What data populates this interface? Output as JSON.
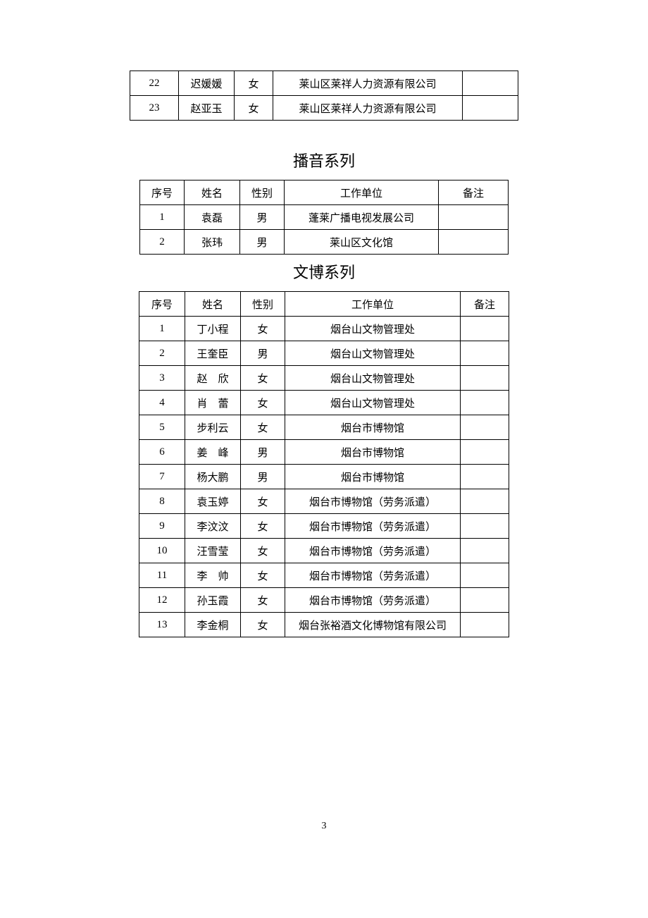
{
  "page_number": "3",
  "top_table": {
    "rows": [
      {
        "idx": "22",
        "name": "迟媛媛",
        "gender": "女",
        "unit": "莱山区莱祥人力资源有限公司",
        "note": ""
      },
      {
        "idx": "23",
        "name": "赵亚玉",
        "gender": "女",
        "unit": "莱山区莱祥人力资源有限公司",
        "note": ""
      }
    ]
  },
  "section2": {
    "title": "播音系列",
    "columns": [
      "序号",
      "姓名",
      "性别",
      "工作单位",
      "备注"
    ],
    "rows": [
      {
        "idx": "1",
        "name": "袁磊",
        "gender": "男",
        "unit": "蓬莱广播电视发展公司",
        "note": ""
      },
      {
        "idx": "2",
        "name": "张玮",
        "gender": "男",
        "unit": "莱山区文化馆",
        "note": ""
      }
    ]
  },
  "section3": {
    "title": "文博系列",
    "columns": [
      "序号",
      "姓名",
      "性别",
      "工作单位",
      "备注"
    ],
    "rows": [
      {
        "idx": "1",
        "name": "丁小程",
        "gender": "女",
        "unit": "烟台山文物管理处",
        "note": ""
      },
      {
        "idx": "2",
        "name": "王奎臣",
        "gender": "男",
        "unit": "烟台山文物管理处",
        "note": ""
      },
      {
        "idx": "3",
        "name": "赵　欣",
        "gender": "女",
        "unit": "烟台山文物管理处",
        "note": ""
      },
      {
        "idx": "4",
        "name": "肖　蕾",
        "gender": "女",
        "unit": "烟台山文物管理处",
        "note": ""
      },
      {
        "idx": "5",
        "name": "步利云",
        "gender": "女",
        "unit": "烟台市博物馆",
        "note": ""
      },
      {
        "idx": "6",
        "name": "姜　峰",
        "gender": "男",
        "unit": "烟台市博物馆",
        "note": ""
      },
      {
        "idx": "7",
        "name": "杨大鹏",
        "gender": "男",
        "unit": "烟台市博物馆",
        "note": ""
      },
      {
        "idx": "8",
        "name": "袁玉婷",
        "gender": "女",
        "unit": "烟台市博物馆（劳务派遣）",
        "note": ""
      },
      {
        "idx": "9",
        "name": "李汶汶",
        "gender": "女",
        "unit": "烟台市博物馆（劳务派遣）",
        "note": ""
      },
      {
        "idx": "10",
        "name": "汪雪莹",
        "gender": "女",
        "unit": "烟台市博物馆（劳务派遣）",
        "note": ""
      },
      {
        "idx": "11",
        "name": "李　帅",
        "gender": "女",
        "unit": "烟台市博物馆（劳务派遣）",
        "note": ""
      },
      {
        "idx": "12",
        "name": "孙玉霞",
        "gender": "女",
        "unit": "烟台市博物馆（劳务派遣）",
        "note": ""
      },
      {
        "idx": "13",
        "name": "李金桐",
        "gender": "女",
        "unit": "烟台张裕酒文化博物馆有限公司",
        "note": ""
      }
    ]
  }
}
